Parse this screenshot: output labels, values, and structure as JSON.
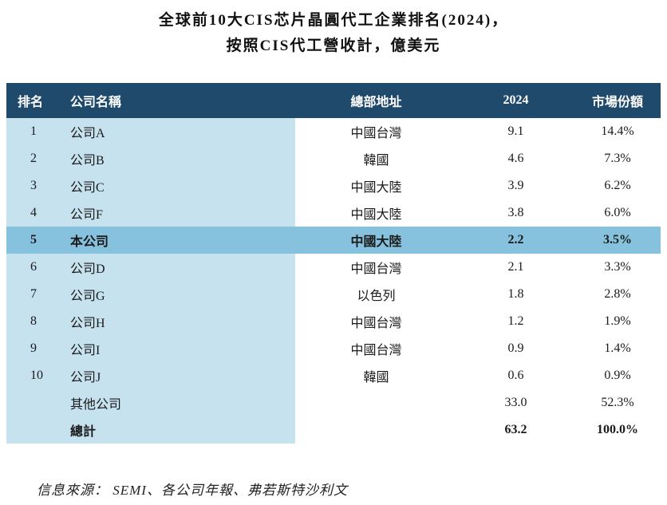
{
  "title": {
    "line1": "全球前10大CIS芯片晶圓代工企業排名(2024)，",
    "line2": "按照CIS代工營收計，億美元"
  },
  "table": {
    "headers": {
      "rank": "排名",
      "company": "公司名稱",
      "hq": "總部地址",
      "year": "2024",
      "share": "市場份額"
    },
    "rows": [
      {
        "rank": "1",
        "company": "公司A",
        "hq": "中國台灣",
        "value": "9.1",
        "share": "14.4%"
      },
      {
        "rank": "2",
        "company": "公司B",
        "hq": "韓國",
        "value": "4.6",
        "share": "7.3%"
      },
      {
        "rank": "3",
        "company": "公司C",
        "hq": "中國大陸",
        "value": "3.9",
        "share": "6.2%"
      },
      {
        "rank": "4",
        "company": "公司F",
        "hq": "中國大陸",
        "value": "3.8",
        "share": "6.0%"
      },
      {
        "rank": "5",
        "company": "本公司",
        "hq": "中國大陸",
        "value": "2.2",
        "share": "3.5%"
      },
      {
        "rank": "6",
        "company": "公司D",
        "hq": "中國台灣",
        "value": "2.1",
        "share": "3.3%"
      },
      {
        "rank": "7",
        "company": "公司G",
        "hq": "以色列",
        "value": "1.8",
        "share": "2.8%"
      },
      {
        "rank": "8",
        "company": "公司H",
        "hq": "中國台灣",
        "value": "1.2",
        "share": "1.9%"
      },
      {
        "rank": "9",
        "company": "公司I",
        "hq": "中國台灣",
        "value": "0.9",
        "share": "1.4%"
      },
      {
        "rank": "10",
        "company": "公司J",
        "hq": "韓國",
        "value": "0.6",
        "share": "0.9%"
      }
    ],
    "other": {
      "company": "其他公司",
      "value": "33.0",
      "share": "52.3%"
    },
    "total": {
      "company": "總計",
      "value": "63.2",
      "share": "100.0%"
    }
  },
  "source": "信息來源： SEMI、各公司年報、弗若斯特沙利文"
}
